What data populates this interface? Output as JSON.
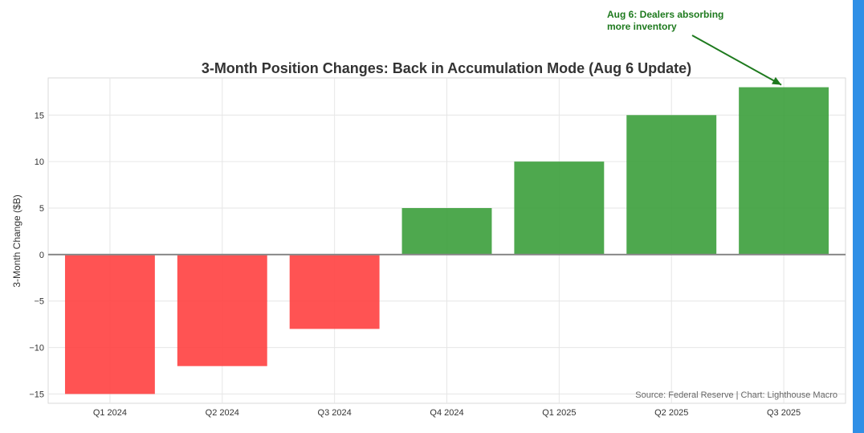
{
  "chart_data": {
    "type": "bar",
    "title": "3-Month Position Changes: Back in Accumulation Mode (Aug 6 Update)",
    "xlabel": "",
    "ylabel": "3-Month Change ($B)",
    "categories": [
      "Q1 2024",
      "Q2 2024",
      "Q3 2024",
      "Q4 2024",
      "Q1 2025",
      "Q2 2025",
      "Q3 2025"
    ],
    "values": [
      -15,
      -12,
      -8,
      5,
      10,
      15,
      18
    ],
    "ylim": [
      -16,
      19
    ],
    "yticks": [
      -15,
      -10,
      -5,
      0,
      5,
      10,
      15
    ],
    "ytick_labels": [
      "−15",
      "−10",
      "−5",
      "0",
      "5",
      "10",
      "15"
    ],
    "grid": true,
    "colors": {
      "positive": "#3b9e3b",
      "negative": "#ff4040",
      "annotation": "#1e7a1e",
      "zero_line": "#888888"
    },
    "annotation": {
      "lines": [
        "Aug 6: Dealers absorbing",
        "more inventory"
      ],
      "target_category": "Q3 2025",
      "target_value": 18
    },
    "source": "Source: Federal Reserve | Chart: Lighthouse Macro"
  }
}
